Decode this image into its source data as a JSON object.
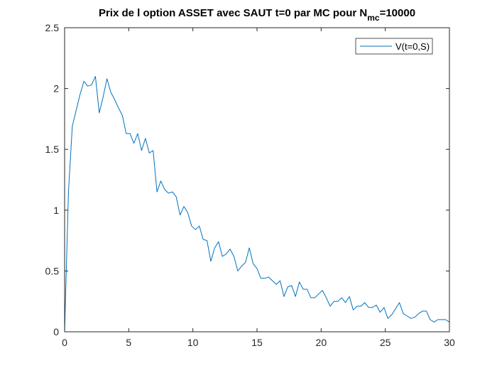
{
  "chart_data": {
    "type": "line",
    "title": {
      "main": "Prix de l option ASSET avec SAUT t=0 par MC pour N",
      "sub": "mc",
      "tail": "=10000"
    },
    "xlabel": "",
    "ylabel": "",
    "xlim": [
      0,
      30
    ],
    "ylim": [
      0,
      2.5
    ],
    "xticks": [
      0,
      5,
      10,
      15,
      20,
      25,
      30
    ],
    "yticks": [
      0,
      0.5,
      1,
      1.5,
      2,
      2.5
    ],
    "xtick_labels": [
      "0",
      "5",
      "10",
      "15",
      "20",
      "25",
      "30"
    ],
    "ytick_labels": [
      "0",
      "0.5",
      "1",
      "1.5",
      "2",
      "2.5"
    ],
    "grid": false,
    "legend": {
      "position": "top-right",
      "entries": [
        "V(t=0,S)"
      ]
    },
    "series": [
      {
        "name": "V(t=0,S)",
        "color": "#0072BD",
        "x": [
          0,
          0.3,
          0.6,
          0.9,
          1.2,
          1.5,
          1.8,
          2.1,
          2.4,
          2.7,
          3.0,
          3.3,
          3.6,
          3.9,
          4.2,
          4.5,
          4.8,
          5.1,
          5.4,
          5.7,
          6.0,
          6.3,
          6.6,
          6.9,
          7.2,
          7.5,
          7.8,
          8.1,
          8.4,
          8.7,
          9.0,
          9.3,
          9.6,
          9.9,
          10.2,
          10.5,
          10.8,
          11.1,
          11.4,
          11.7,
          12.0,
          12.3,
          12.6,
          12.9,
          13.2,
          13.5,
          13.8,
          14.1,
          14.4,
          14.7,
          15.0,
          15.3,
          15.6,
          15.9,
          16.2,
          16.5,
          16.8,
          17.1,
          17.4,
          17.7,
          18.0,
          18.3,
          18.6,
          18.9,
          19.2,
          19.5,
          19.8,
          20.1,
          20.4,
          20.7,
          21.0,
          21.3,
          21.6,
          21.9,
          22.2,
          22.5,
          22.8,
          23.1,
          23.4,
          23.7,
          24.0,
          24.3,
          24.6,
          24.9,
          25.2,
          25.5,
          25.8,
          26.1,
          26.4,
          26.7,
          27.0,
          27.3,
          27.6,
          27.9,
          28.2,
          28.5,
          28.8,
          29.1,
          29.4,
          29.7,
          30.0
        ],
        "values": [
          0.0,
          1.15,
          1.69,
          1.82,
          1.95,
          2.06,
          2.02,
          2.03,
          2.1,
          1.8,
          1.93,
          2.08,
          1.97,
          1.91,
          1.84,
          1.78,
          1.63,
          1.63,
          1.55,
          1.63,
          1.49,
          1.59,
          1.47,
          1.49,
          1.15,
          1.24,
          1.17,
          1.14,
          1.15,
          1.11,
          0.96,
          1.03,
          0.98,
          0.87,
          0.84,
          0.87,
          0.76,
          0.75,
          0.58,
          0.69,
          0.74,
          0.62,
          0.64,
          0.68,
          0.62,
          0.5,
          0.54,
          0.57,
          0.69,
          0.56,
          0.52,
          0.44,
          0.44,
          0.45,
          0.42,
          0.39,
          0.42,
          0.29,
          0.37,
          0.38,
          0.29,
          0.41,
          0.35,
          0.35,
          0.28,
          0.28,
          0.31,
          0.34,
          0.28,
          0.21,
          0.25,
          0.25,
          0.28,
          0.24,
          0.29,
          0.18,
          0.21,
          0.21,
          0.24,
          0.2,
          0.2,
          0.22,
          0.16,
          0.2,
          0.11,
          0.14,
          0.19,
          0.24,
          0.15,
          0.13,
          0.11,
          0.12,
          0.15,
          0.17,
          0.17,
          0.1,
          0.08,
          0.1,
          0.1,
          0.1,
          0.08
        ]
      }
    ]
  }
}
